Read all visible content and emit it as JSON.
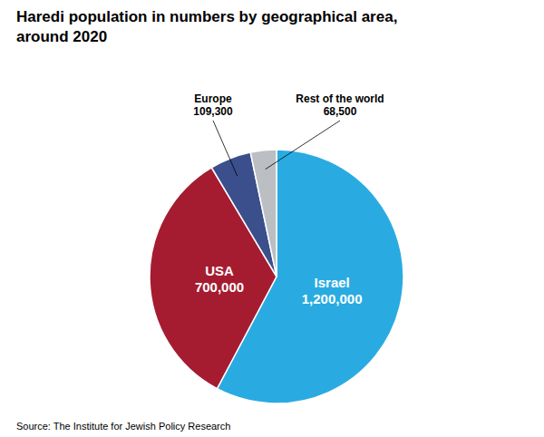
{
  "chart_data": {
    "type": "pie",
    "title": "Haredi population in numbers by geographical area,\naround 2020",
    "source": "Source: The Institute for Jewish Policy Research",
    "categories": [
      "Israel",
      "USA",
      "Europe",
      "Rest of the world"
    ],
    "values": [
      1200000,
      700000,
      109300,
      68500
    ],
    "value_labels": [
      "1,200,000",
      "700,000",
      "109,300",
      "68,500"
    ],
    "colors": [
      "#29ABE2",
      "#A51C30",
      "#3B4F8C",
      "#BBBFC3"
    ],
    "data_labels": true
  }
}
